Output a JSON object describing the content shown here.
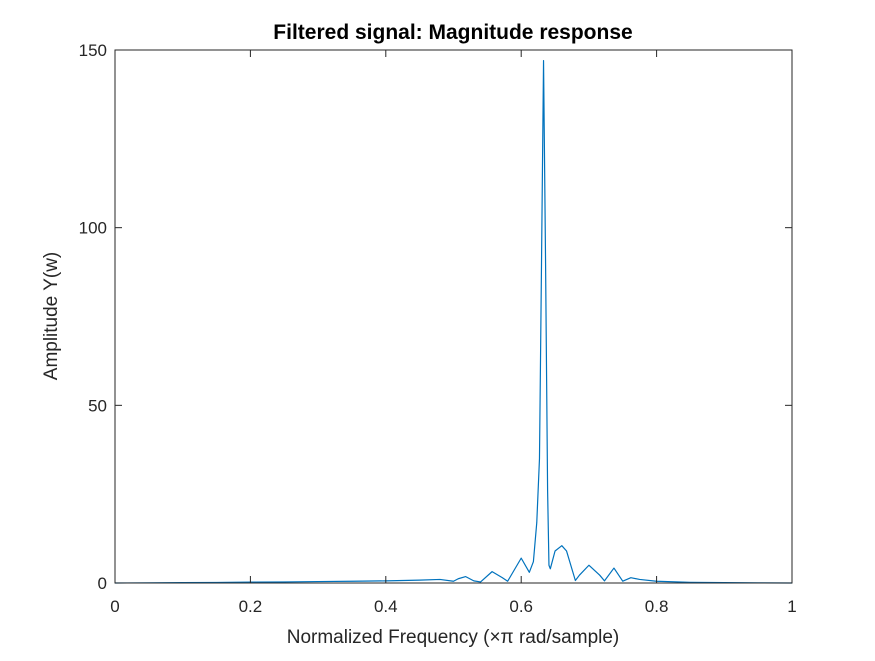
{
  "chart_data": {
    "type": "line",
    "title": "Filtered signal: Magnitude response",
    "xlabel": "Normalized Frequency (×π rad/sample)",
    "ylabel": "Amplitude Y(w)",
    "xlim": [
      0,
      1
    ],
    "ylim": [
      0,
      150
    ],
    "xticks": [
      0,
      0.2,
      0.4,
      0.6,
      0.8,
      1
    ],
    "xtick_labels": [
      "0",
      "0.2",
      "0.4",
      "0.6",
      "0.8",
      "1"
    ],
    "yticks": [
      0,
      50,
      100,
      150
    ],
    "ytick_labels": [
      "0",
      "50",
      "100",
      "150"
    ],
    "grid": false,
    "line_color": "#0072BD",
    "series": [
      {
        "x": [
          0,
          0.05,
          0.1,
          0.15,
          0.2,
          0.25,
          0.3,
          0.35,
          0.4,
          0.45,
          0.48,
          0.5,
          0.507,
          0.518,
          0.53,
          0.54,
          0.557,
          0.572,
          0.58,
          0.6,
          0.612,
          0.618,
          0.623,
          0.627,
          0.63,
          0.633,
          0.636,
          0.639,
          0.641,
          0.643,
          0.65,
          0.66,
          0.667,
          0.68,
          0.686,
          0.7,
          0.716,
          0.723,
          0.737,
          0.75,
          0.762,
          0.775,
          0.8,
          0.85,
          0.9,
          0.95,
          1
        ],
        "y": [
          0,
          0.05,
          0.1,
          0.15,
          0.25,
          0.3,
          0.4,
          0.5,
          0.6,
          0.8,
          1.0,
          0.5,
          1.2,
          1.8,
          0.6,
          0.3,
          3.2,
          1.5,
          0.5,
          7,
          3,
          6,
          17,
          35,
          90,
          147,
          90,
          26,
          5,
          4,
          9,
          10.5,
          9,
          0.7,
          2.2,
          5,
          2.2,
          0.6,
          4.2,
          0.5,
          1.5,
          1,
          0.5,
          0.2,
          0.1,
          0.05,
          0
        ]
      }
    ]
  }
}
